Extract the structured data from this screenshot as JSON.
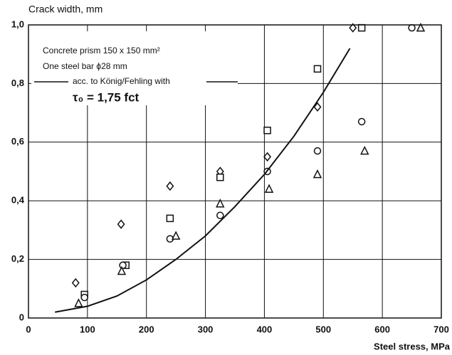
{
  "chart_data": {
    "type": "scatter",
    "ylabel": "Crack width, mm",
    "xlabel": "Steel stress, MPa",
    "annotations": [
      "Concrete prism 150 x 150 mm²",
      "One steel bar ϕ28 mm",
      "τ₀ = 1,75 fct"
    ],
    "xlim": [
      0,
      700
    ],
    "xticks": [
      0,
      100,
      200,
      300,
      400,
      500,
      600,
      700
    ],
    "ylim": [
      0,
      1.0
    ],
    "yticks": [
      0,
      {
        "value": 0.2,
        "label": "0,2"
      },
      {
        "value": 0.4,
        "label": "0,4"
      },
      {
        "value": 0.6,
        "label": "0,6"
      },
      {
        "value": 0.8,
        "label": "0,8"
      },
      {
        "value": 1.0,
        "label": "1,0"
      }
    ],
    "grid": true,
    "series": [
      {
        "marker": "diamond",
        "color": "#111111",
        "x": [
          80,
          157,
          240,
          325,
          405,
          490,
          550
        ],
        "values": [
          0.12,
          0.32,
          0.45,
          0.5,
          0.55,
          0.72,
          0.99
        ]
      },
      {
        "marker": "square",
        "color": "#111111",
        "x": [
          95,
          165,
          240,
          325,
          405,
          490,
          565
        ],
        "values": [
          0.08,
          0.18,
          0.34,
          0.48,
          0.64,
          0.85,
          0.99
        ]
      },
      {
        "marker": "circle",
        "color": "#111111",
        "x": [
          95,
          160,
          240,
          325,
          405,
          490,
          565,
          650
        ],
        "values": [
          0.07,
          0.18,
          0.27,
          0.35,
          0.5,
          0.57,
          0.67,
          0.99
        ]
      },
      {
        "marker": "triangle",
        "color": "#111111",
        "x": [
          85,
          158,
          250,
          325,
          408,
          490,
          570,
          665
        ],
        "values": [
          0.05,
          0.16,
          0.28,
          0.39,
          0.44,
          0.49,
          0.57,
          0.99
        ]
      },
      {
        "name": "acc. to König/Fehling with",
        "marker": "line",
        "color": "#111111",
        "x": [
          45,
          100,
          150,
          200,
          250,
          300,
          350,
          400,
          450,
          500,
          545
        ],
        "values": [
          0.02,
          0.04,
          0.075,
          0.13,
          0.2,
          0.28,
          0.38,
          0.49,
          0.62,
          0.77,
          0.92
        ]
      }
    ]
  }
}
